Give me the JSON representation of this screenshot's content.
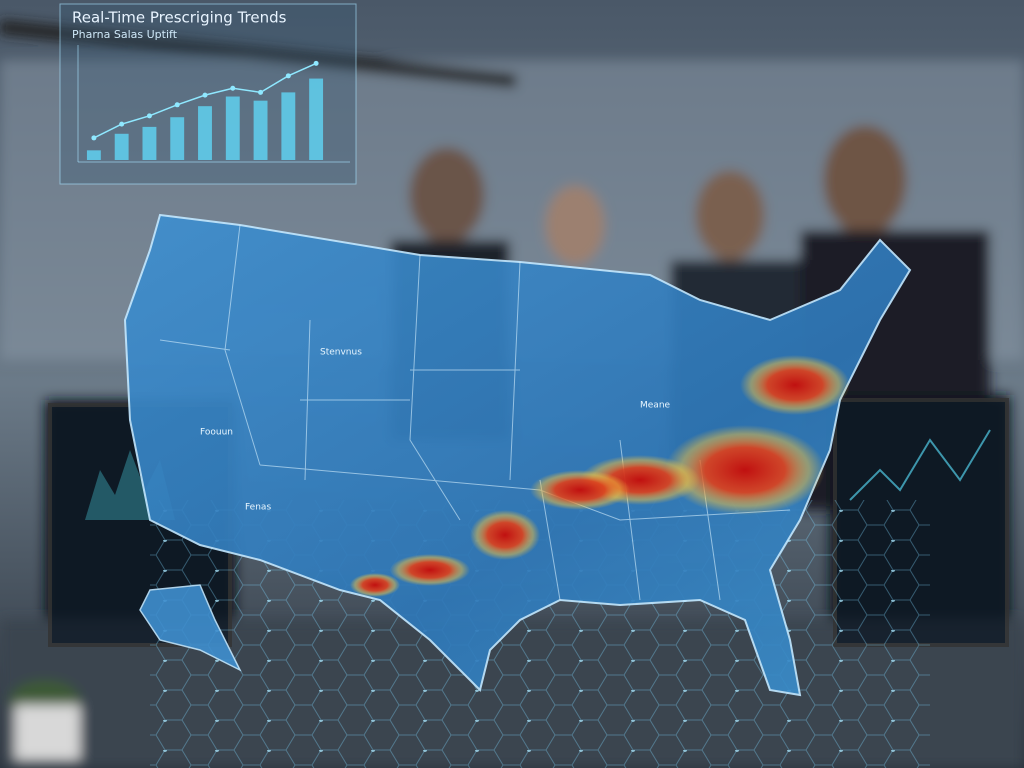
{
  "chart_data": {
    "type": "bar",
    "title": "Real-Time Prescriging Trends",
    "subtitle": "Pharna Salas Uptift",
    "categories": [
      null,
      null,
      null,
      null,
      null,
      null,
      null,
      null,
      null
    ],
    "ylim": [
      0,
      100
    ],
    "series": [
      {
        "type": "bar",
        "color": "#5fd0f0",
        "values": [
          7,
          19,
          24,
          31,
          39,
          46,
          43,
          49,
          59
        ]
      },
      {
        "type": "line",
        "color": "#8fe8ff",
        "values": [
          16,
          26,
          32,
          40,
          47,
          52,
          49,
          61,
          70
        ]
      }
    ]
  },
  "map": {
    "labels": [
      "Stenvnus",
      "Foouun",
      "Meane",
      "Fenas"
    ]
  }
}
